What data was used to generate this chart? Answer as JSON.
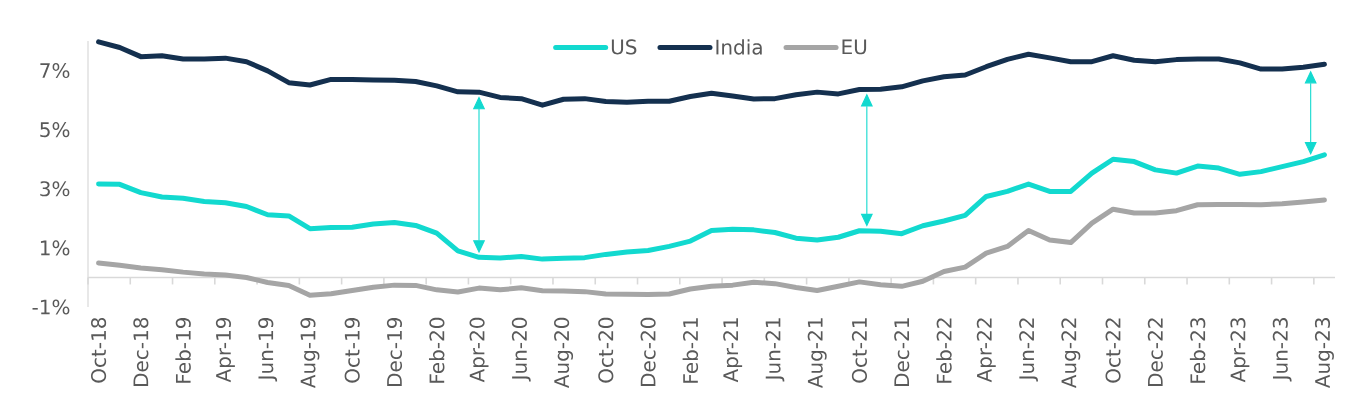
{
  "chart_data": {
    "type": "line",
    "categories": [
      "Oct-18",
      null,
      "Dec-18",
      null,
      "Feb-19",
      null,
      "Apr-19",
      null,
      "Jun-19",
      null,
      "Aug-19",
      null,
      "Oct-19",
      null,
      "Dec-19",
      null,
      "Feb-20",
      null,
      "Apr-20",
      null,
      "Jun-20",
      null,
      "Aug-20",
      null,
      "Oct-20",
      null,
      "Dec-20",
      null,
      "Feb-21",
      null,
      "Apr-21",
      null,
      "Jun-21",
      null,
      "Aug-21",
      null,
      "Oct-21",
      null,
      "Dec-21",
      null,
      "Feb-22",
      null,
      "Apr-22",
      null,
      "Jun-22",
      null,
      "Aug-22",
      null,
      "Oct-22",
      null,
      "Dec-22",
      null,
      "Feb-23",
      null,
      "Apr-23",
      null,
      "Jun-23",
      null,
      "Aug-23"
    ],
    "series": [
      {
        "name": "US",
        "color": "#12D9CF",
        "values": [
          3.16,
          3.15,
          2.87,
          2.72,
          2.68,
          2.57,
          2.53,
          2.4,
          2.12,
          2.08,
          1.65,
          1.69,
          1.7,
          1.81,
          1.86,
          1.76,
          1.5,
          0.9,
          0.68,
          0.66,
          0.71,
          0.62,
          0.65,
          0.67,
          0.78,
          0.86,
          0.91,
          1.05,
          1.23,
          1.59,
          1.63,
          1.61,
          1.52,
          1.33,
          1.27,
          1.36,
          1.58,
          1.56,
          1.48,
          1.75,
          1.91,
          2.1,
          2.74,
          2.91,
          3.16,
          2.91,
          2.91,
          3.53,
          4.0,
          3.92,
          3.64,
          3.53,
          3.77,
          3.7,
          3.49,
          3.58,
          3.75,
          3.92,
          4.15
        ]
      },
      {
        "name": "India",
        "color": "#14304F",
        "values": [
          7.97,
          7.78,
          7.47,
          7.5,
          7.39,
          7.39,
          7.42,
          7.3,
          6.99,
          6.59,
          6.51,
          6.7,
          6.7,
          6.68,
          6.67,
          6.63,
          6.48,
          6.28,
          6.27,
          6.09,
          6.05,
          5.83,
          6.03,
          6.05,
          5.95,
          5.93,
          5.96,
          5.96,
          6.12,
          6.23,
          6.14,
          6.04,
          6.05,
          6.18,
          6.27,
          6.21,
          6.36,
          6.37,
          6.45,
          6.65,
          6.79,
          6.85,
          7.13,
          7.38,
          7.55,
          7.43,
          7.3,
          7.3,
          7.5,
          7.35,
          7.3,
          7.37,
          7.39,
          7.39,
          7.26,
          7.05,
          7.05,
          7.11,
          7.21
        ]
      },
      {
        "name": "EU",
        "color": "#A5A5A5",
        "values": [
          0.49,
          0.41,
          0.32,
          0.26,
          0.18,
          0.12,
          0.08,
          0.0,
          -0.17,
          -0.27,
          -0.6,
          -0.55,
          -0.44,
          -0.33,
          -0.26,
          -0.27,
          -0.42,
          -0.49,
          -0.36,
          -0.42,
          -0.35,
          -0.45,
          -0.46,
          -0.48,
          -0.56,
          -0.57,
          -0.58,
          -0.56,
          -0.39,
          -0.3,
          -0.26,
          -0.16,
          -0.21,
          -0.34,
          -0.44,
          -0.3,
          -0.15,
          -0.25,
          -0.3,
          -0.13,
          0.2,
          0.35,
          0.82,
          1.05,
          1.59,
          1.27,
          1.18,
          1.84,
          2.31,
          2.18,
          2.18,
          2.26,
          2.46,
          2.47,
          2.47,
          2.46,
          2.49,
          2.55,
          2.62
        ]
      }
    ],
    "ylim": [
      -1,
      8
    ],
    "yticks": [
      {
        "value": -1,
        "label": "-1%"
      },
      {
        "value": 1,
        "label": "1%"
      },
      {
        "value": 3,
        "label": "3%"
      },
      {
        "value": 5,
        "label": "5%"
      },
      {
        "value": 7,
        "label": "7%"
      }
    ],
    "legend": "top",
    "line_style": "solid"
  }
}
